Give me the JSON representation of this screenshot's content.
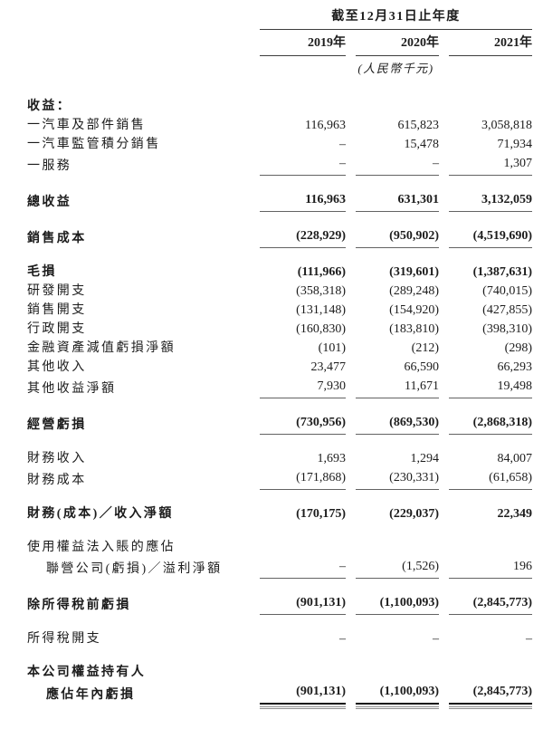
{
  "document": {
    "period_header": "截至12月31日止年度",
    "years": [
      "2019年",
      "2020年",
      "2021年"
    ],
    "unit_note": "(人民幣千元)"
  },
  "colors": {
    "text": "#1c1c1c",
    "rule": "#636363",
    "header_rule": "#3d3d3d",
    "total_rule_top": "#141414",
    "total_rule_bottom": "#8f8f8f",
    "background": "#ffffff"
  },
  "table": {
    "columns": [
      "2019年",
      "2020年",
      "2021年"
    ],
    "rows": [
      {
        "label": "收益：",
        "bold": true,
        "cells": null
      },
      {
        "label": "一汽車及部件銷售",
        "cells": [
          "116,963",
          "615,823",
          "3,058,818"
        ]
      },
      {
        "label": "一汽車監管積分銷售",
        "cells": [
          "–",
          "15,478",
          "71,934"
        ]
      },
      {
        "label": "一服務",
        "cells": [
          "–",
          "–",
          "1,307"
        ],
        "rule": "single"
      },
      {
        "label": "總收益",
        "bold": true,
        "gap": true,
        "cells": [
          "116,963",
          "631,301",
          "3,132,059"
        ],
        "rule": "single"
      },
      {
        "label": "銷售成本",
        "bold": true,
        "gap": true,
        "cells": [
          "(228,929)",
          "(950,902)",
          "(4,519,690)"
        ],
        "rule": "single"
      },
      {
        "label": "毛損",
        "bold": true,
        "gap": true,
        "cells": [
          "(111,966)",
          "(319,601)",
          "(1,387,631)"
        ]
      },
      {
        "label": "研發開支",
        "cells": [
          "(358,318)",
          "(289,248)",
          "(740,015)"
        ]
      },
      {
        "label": "銷售開支",
        "cells": [
          "(131,148)",
          "(154,920)",
          "(427,855)"
        ]
      },
      {
        "label": "行政開支",
        "cells": [
          "(160,830)",
          "(183,810)",
          "(398,310)"
        ]
      },
      {
        "label": "金融資產減值虧損淨額",
        "cells": [
          "(101)",
          "(212)",
          "(298)"
        ]
      },
      {
        "label": "其他收入",
        "cells": [
          "23,477",
          "66,590",
          "66,293"
        ]
      },
      {
        "label": "其他收益淨額",
        "cells": [
          "7,930",
          "11,671",
          "19,498"
        ],
        "rule": "single"
      },
      {
        "label": "經營虧損",
        "bold": true,
        "gap": true,
        "cells": [
          "(730,956)",
          "(869,530)",
          "(2,868,318)"
        ],
        "rule": "single"
      },
      {
        "label": "財務收入",
        "gap": true,
        "cells": [
          "1,693",
          "1,294",
          "84,007"
        ]
      },
      {
        "label": "財務成本",
        "cells": [
          "(171,868)",
          "(230,331)",
          "(61,658)"
        ],
        "rule": "single"
      },
      {
        "label": "財務(成本)／收入淨額",
        "bold": true,
        "gap": true,
        "cells": [
          "(170,175)",
          "(229,037)",
          "22,349"
        ]
      },
      {
        "label": "使用權益法入賬的應佔",
        "gap": true,
        "cells": null
      },
      {
        "label": "聯營公司(虧損)／溢利淨額",
        "indent": 1,
        "cells": [
          "–",
          "(1,526)",
          "196"
        ],
        "rule": "single"
      },
      {
        "label": "除所得稅前虧損",
        "bold": true,
        "gap": true,
        "cells": [
          "(901,131)",
          "(1,100,093)",
          "(2,845,773)"
        ],
        "rule": "single"
      },
      {
        "label": "所得稅開支",
        "gap": true,
        "cells": [
          "–",
          "–",
          "–"
        ]
      },
      {
        "label": "本公司權益持有人",
        "bold": true,
        "gap": true,
        "cells": null
      },
      {
        "label": "應佔年內虧損",
        "bold": true,
        "indent": 1,
        "cells": [
          "(901,131)",
          "(1,100,093)",
          "(2,845,773)"
        ],
        "rule": "double"
      }
    ]
  }
}
